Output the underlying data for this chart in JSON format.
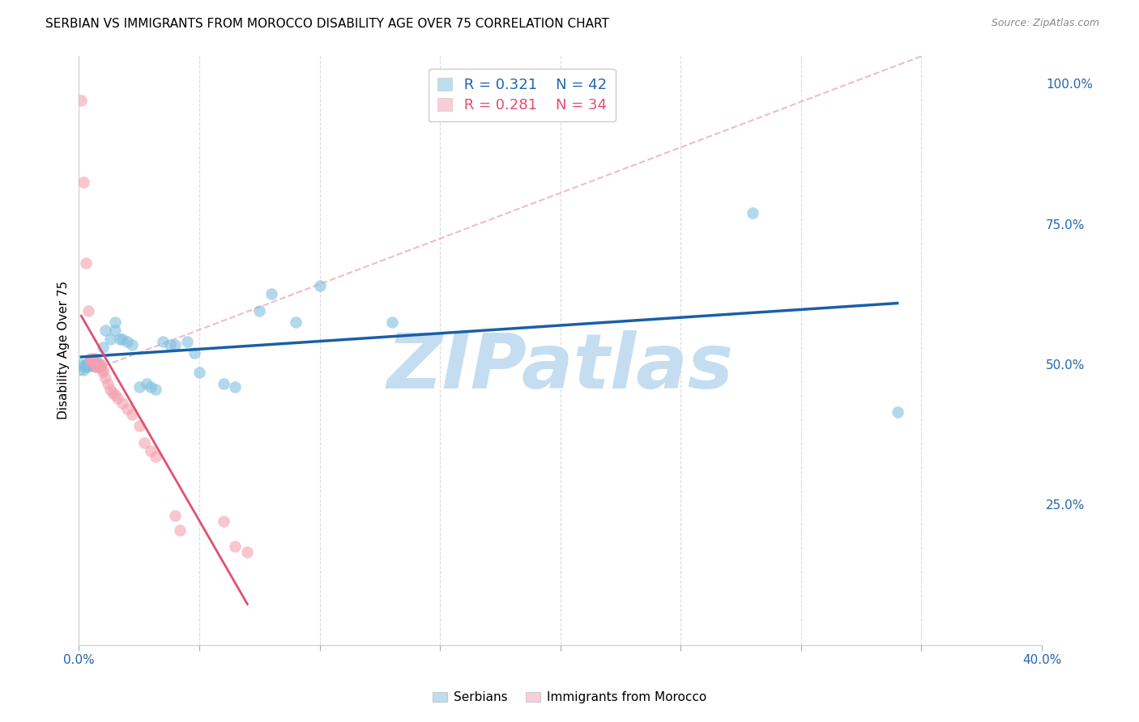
{
  "title": "SERBIAN VS IMMIGRANTS FROM MOROCCO DISABILITY AGE OVER 75 CORRELATION CHART",
  "source": "Source: ZipAtlas.com",
  "xlim": [
    0.0,
    0.4
  ],
  "ylim": [
    0.0,
    1.05
  ],
  "ylabel_right_ticks": [
    0.25,
    0.5,
    0.75,
    1.0
  ],
  "ylabel_right_labels": [
    "25.0%",
    "50.0%",
    "75.0%",
    "100.0%"
  ],
  "xlabel_ticks": [
    0.0,
    0.05,
    0.1,
    0.15,
    0.2,
    0.25,
    0.3,
    0.35,
    0.4
  ],
  "xlabel_major": [
    0.0,
    0.4
  ],
  "xlabel_major_labels": [
    "0.0%",
    "40.0%"
  ],
  "legend_R_serbian": "R = 0.321",
  "legend_N_serbian": "N = 42",
  "legend_R_morocco": "R = 0.281",
  "legend_N_morocco": "N = 34",
  "serbian_color": "#7fbfdf",
  "morocco_color": "#f4a0b0",
  "blue_line_color": "#1a5fa8",
  "pink_line_color": "#e05070",
  "pink_dash_color": "#e8a0b0",
  "watermark_color": "#c8dff0",
  "serbian_points": [
    [
      0.001,
      0.5
    ],
    [
      0.002,
      0.495
    ],
    [
      0.002,
      0.49
    ],
    [
      0.003,
      0.5
    ],
    [
      0.003,
      0.495
    ],
    [
      0.004,
      0.498
    ],
    [
      0.004,
      0.503
    ],
    [
      0.005,
      0.502
    ],
    [
      0.005,
      0.497
    ],
    [
      0.006,
      0.505
    ],
    [
      0.007,
      0.51
    ],
    [
      0.007,
      0.496
    ],
    [
      0.008,
      0.5
    ],
    [
      0.009,
      0.498
    ],
    [
      0.01,
      0.53
    ],
    [
      0.011,
      0.56
    ],
    [
      0.013,
      0.545
    ],
    [
      0.015,
      0.575
    ],
    [
      0.015,
      0.56
    ],
    [
      0.017,
      0.545
    ],
    [
      0.018,
      0.545
    ],
    [
      0.02,
      0.54
    ],
    [
      0.022,
      0.535
    ],
    [
      0.025,
      0.46
    ],
    [
      0.028,
      0.465
    ],
    [
      0.03,
      0.46
    ],
    [
      0.032,
      0.455
    ],
    [
      0.035,
      0.54
    ],
    [
      0.038,
      0.535
    ],
    [
      0.04,
      0.535
    ],
    [
      0.045,
      0.54
    ],
    [
      0.048,
      0.52
    ],
    [
      0.05,
      0.485
    ],
    [
      0.06,
      0.465
    ],
    [
      0.065,
      0.46
    ],
    [
      0.075,
      0.595
    ],
    [
      0.08,
      0.625
    ],
    [
      0.09,
      0.575
    ],
    [
      0.1,
      0.64
    ],
    [
      0.13,
      0.575
    ],
    [
      0.28,
      0.77
    ],
    [
      0.34,
      0.415
    ]
  ],
  "morocco_points": [
    [
      0.001,
      0.97
    ],
    [
      0.002,
      0.825
    ],
    [
      0.003,
      0.68
    ],
    [
      0.004,
      0.595
    ],
    [
      0.005,
      0.51
    ],
    [
      0.005,
      0.505
    ],
    [
      0.006,
      0.51
    ],
    [
      0.006,
      0.505
    ],
    [
      0.007,
      0.5
    ],
    [
      0.007,
      0.495
    ],
    [
      0.008,
      0.5
    ],
    [
      0.008,
      0.495
    ],
    [
      0.009,
      0.5
    ],
    [
      0.009,
      0.496
    ],
    [
      0.01,
      0.49
    ],
    [
      0.01,
      0.485
    ],
    [
      0.011,
      0.475
    ],
    [
      0.012,
      0.465
    ],
    [
      0.013,
      0.455
    ],
    [
      0.014,
      0.45
    ],
    [
      0.015,
      0.445
    ],
    [
      0.016,
      0.44
    ],
    [
      0.018,
      0.43
    ],
    [
      0.02,
      0.42
    ],
    [
      0.022,
      0.41
    ],
    [
      0.025,
      0.39
    ],
    [
      0.027,
      0.36
    ],
    [
      0.03,
      0.345
    ],
    [
      0.032,
      0.335
    ],
    [
      0.04,
      0.23
    ],
    [
      0.042,
      0.205
    ],
    [
      0.06,
      0.22
    ],
    [
      0.065,
      0.175
    ],
    [
      0.07,
      0.165
    ]
  ],
  "ylabel": "Disability Age Over 75"
}
